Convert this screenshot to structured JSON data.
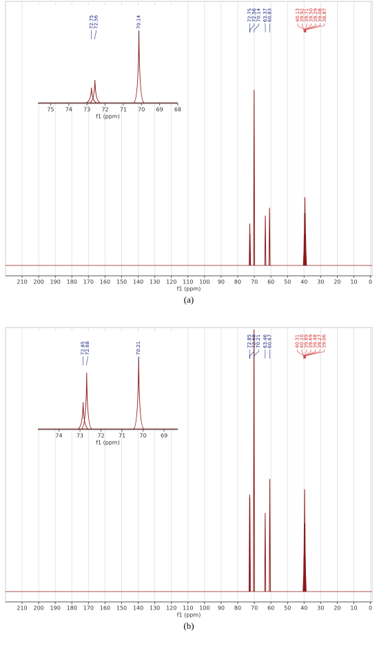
{
  "chart_data": [
    {
      "type": "spectrum",
      "caption": "(a)",
      "xlabel": "f1 (ppm)",
      "color": "#8b1a1a",
      "grid": true,
      "xlim": [
        220,
        -1
      ],
      "ylim": [
        0,
        100
      ],
      "xticks": [
        210,
        200,
        190,
        180,
        170,
        160,
        150,
        140,
        130,
        120,
        110,
        100,
        90,
        80,
        70,
        60,
        50,
        40,
        30,
        20,
        10,
        0
      ],
      "peaks": {
        "x": [
          72.75,
          72.56,
          70.14,
          63.37,
          60.83,
          40.13,
          39.92,
          39.71,
          39.5,
          39.29,
          39.08,
          38.87
        ],
        "heights": [
          16,
          12,
          67,
          19,
          22,
          5,
          12,
          20,
          26,
          20,
          12,
          5
        ]
      },
      "label_groups": [
        {
          "color": "#1a237e",
          "labels": [
            72.75,
            72.56,
            70.14,
            63.37,
            60.83
          ]
        },
        {
          "color": "#d32f2f",
          "labels": [
            40.13,
            39.92,
            39.71,
            {
              "value": 39.5,
              "label": "39.50"
            },
            39.29,
            39.08,
            38.87
          ]
        }
      ]
    },
    {
      "type": "spectrum",
      "xlabel": "f1 (ppm)",
      "color": "#8b1a1a",
      "grid": false,
      "xlim": [
        75.7,
        68
      ],
      "ylim": [
        0,
        100
      ],
      "xticks": [
        75,
        74,
        73,
        72,
        71,
        70,
        69,
        68
      ],
      "peaks": {
        "x": [
          72.75,
          72.56,
          70.14
        ],
        "heights": [
          20,
          30,
          95
        ]
      },
      "label_groups": [
        {
          "color": "#1a237e",
          "labels": [
            72.75,
            72.56,
            70.14
          ]
        }
      ]
    },
    {
      "type": "spectrum",
      "caption": "(b)",
      "xlabel": "f1 (ppm)",
      "color": "#8b1a1a",
      "grid": true,
      "xlim": [
        220,
        -1
      ],
      "ylim": [
        0,
        100
      ],
      "xticks": [
        210,
        200,
        190,
        180,
        170,
        160,
        150,
        140,
        130,
        120,
        110,
        100,
        90,
        80,
        70,
        60,
        50,
        40,
        30,
        20,
        10,
        0
      ],
      "peaks": {
        "x": [
          72.85,
          72.68,
          70.21,
          63.46,
          60.67,
          40.31,
          40.1,
          39.89,
          39.69,
          39.48,
          39.27,
          39.06
        ],
        "heights": [
          37,
          36,
          100,
          30,
          43,
          6,
          14,
          26,
          39,
          26,
          14,
          6
        ]
      },
      "label_groups": [
        {
          "color": "#1a237e",
          "labels": [
            72.85,
            72.68,
            70.21,
            63.46,
            60.67
          ]
        },
        {
          "color": "#d32f2f",
          "labels": [
            40.31,
            {
              "value": 40.1,
              "label": "40.10"
            },
            39.89,
            39.69,
            39.48,
            39.27,
            39.06
          ]
        }
      ]
    },
    {
      "type": "spectrum",
      "xlabel": "f1 (ppm)",
      "color": "#8b1a1a",
      "grid": false,
      "xlim": [
        75,
        68.35
      ],
      "ylim": [
        0,
        100
      ],
      "xticks": [
        74,
        73,
        72,
        71,
        70,
        69
      ],
      "peaks": {
        "x": [
          72.85,
          72.68,
          70.21
        ],
        "heights": [
          35,
          74,
          95
        ]
      },
      "label_groups": [
        {
          "color": "#1a237e",
          "labels": [
            72.85,
            72.68,
            70.21
          ]
        }
      ]
    }
  ]
}
